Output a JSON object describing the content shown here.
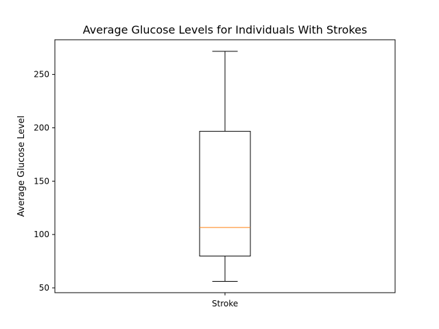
{
  "chart_data": {
    "type": "box",
    "title": "Average Glucose Levels for Individuals With Strokes",
    "xlabel": "",
    "ylabel": "Average Glucose Level",
    "categories": [
      "Stroke"
    ],
    "boxes": [
      {
        "label": "Stroke",
        "whisker_low": 56.1,
        "q1": 79.8,
        "median": 106.6,
        "q3": 196.7,
        "whisker_high": 271.7
      }
    ],
    "ylim": [
      45.5,
      282.5
    ],
    "yticks": [
      50,
      100,
      150,
      200,
      250
    ],
    "grid": false,
    "colors": {
      "box": "#000000",
      "median": "#ff7f0e",
      "background": "#ffffff"
    }
  }
}
